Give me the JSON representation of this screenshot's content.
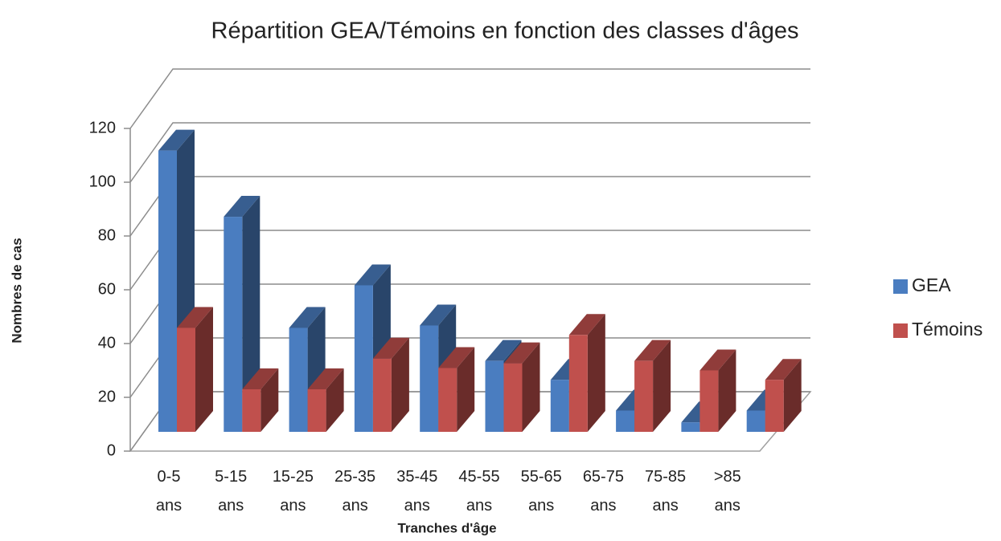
{
  "chart_data": {
    "type": "bar3d",
    "title": "Répartition GEA/Témoins en fonction des classes d'âges",
    "x_label": "Tranches d'âge",
    "y_label": "Nombres de cas",
    "categories": [
      "0-5 ans",
      "5-15 ans",
      "15-25 ans",
      "25-35 ans",
      "35-45 ans",
      "45-55 ans",
      "55-65 ans",
      "65-75 ans",
      "75-85 ans",
      ">85 ans"
    ],
    "series": [
      {
        "name": "GEA",
        "color": "#4a7dc0",
        "values": [
          119,
          91,
          44,
          62,
          45,
          30,
          22,
          9,
          4,
          9
        ]
      },
      {
        "name": "Témoins",
        "color": "#c0504d",
        "values": [
          44,
          18,
          18,
          31,
          27,
          29,
          41,
          30,
          26,
          22
        ]
      }
    ],
    "ylim": [
      0,
      120
    ],
    "yticks": [
      0,
      20,
      40,
      60,
      80,
      100,
      120
    ],
    "grid": true,
    "legend": "right"
  }
}
